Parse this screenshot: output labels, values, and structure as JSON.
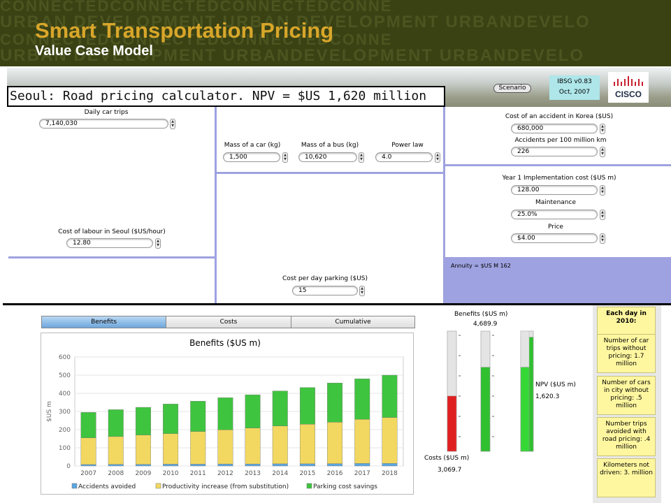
{
  "header": {
    "title": "Smart Transportation Pricing",
    "subtitle": "Value Case Model",
    "bg_line1": "CONNECTEDCONNECTEDCONNECTEDCONNE",
    "bg_line2": "URBAN DEVELOPMENT URBAN DEVELOPMENT URBANDEVELO",
    "bg_line3": "CONNECTEDCONNECTEDCONNECTEDCONNE",
    "bg_line4": "URBAN DEVELOPMENT URBANDEVELOPMENT URBANDEVELO"
  },
  "main_title": "Seoul: Road pricing calculator.  NPV =  $US 1,620 million",
  "scenario_button": "Scenario",
  "version": {
    "line1": "IBSG v0.83",
    "line2": "Oct, 2007"
  },
  "logo_text": "CISCO",
  "inputs": {
    "daily_car_trips": {
      "label": "Daily car trips",
      "value": "7,140,030"
    },
    "labour_cost": {
      "label": "Cost of labour in Seoul ($US/hour)",
      "value": "12.80"
    },
    "mass_car": {
      "label": "Mass of a car (kg)",
      "value": "1,500"
    },
    "mass_bus": {
      "label": "Mass of a bus (kg)",
      "value": "10,620"
    },
    "power_law": {
      "label": "Power law",
      "value": "4.0"
    },
    "parking_cost": {
      "label": "Cost per day parking ($US)",
      "value": "15"
    },
    "accident_cost": {
      "label": "Cost of an accident in Korea ($US)",
      "value": "680,000"
    },
    "accidents_per_km": {
      "label": "Accidents per 100 million km",
      "value": "226"
    },
    "impl_cost": {
      "label": "Year 1 Implementation cost ($US m)",
      "value": "128.00"
    },
    "maintenance": {
      "label": "Maintenance",
      "value": "25.0%"
    },
    "price": {
      "label": "Price",
      "value": "$4.00"
    }
  },
  "annuity": "Annuity = $US M 162",
  "tabs": [
    "Benefits",
    "Costs",
    "Cumulative"
  ],
  "gauges": {
    "benefits_label": "Benefits ($US m)",
    "benefits_value": "4,689.9",
    "npv_label": "NPV ($US m)",
    "npv_value": "1,620.3",
    "costs_label": "Costs ($US m)",
    "costs_value": "3,069.7",
    "costs_fill": 0.46,
    "benefits_fill": 0.7,
    "npv_fill": 0.95,
    "npv_inner_fill": 0.7
  },
  "textboxes": [
    "Each day in 2010:",
    "Number of car trips without pricing: 1.7 million",
    "Number of cars in city without pricing: .5 million",
    "Number trips avoided with road pricing: .4 million",
    "Kilometers not driven: 3. million"
  ],
  "colors": {
    "accidents": "#5aa6e0",
    "productivity": "#f2d860",
    "parking": "#3fc43f",
    "red": "#e02020",
    "green": "#30c030"
  },
  "chart_data": {
    "type": "bar",
    "title": "Benefits ($US m)",
    "ylabel": "$US m",
    "xlabel": "",
    "ylim": [
      0,
      600
    ],
    "yticks": [
      0,
      100,
      200,
      300,
      400,
      500,
      600
    ],
    "categories": [
      "2007",
      "2008",
      "2009",
      "2010",
      "2011",
      "2012",
      "2013",
      "2014",
      "2015",
      "2016",
      "2017",
      "2018"
    ],
    "stacked": true,
    "series": [
      {
        "name": "Accidents avoided",
        "values": [
          8,
          9,
          9,
          10,
          10,
          11,
          11,
          12,
          12,
          13,
          14,
          14
        ]
      },
      {
        "name": "Productivity increase (from substitution)",
        "values": [
          147,
          153,
          161,
          168,
          180,
          188,
          198,
          208,
          218,
          228,
          243,
          253
        ]
      },
      {
        "name": "Parking cost savings",
        "values": [
          140,
          148,
          153,
          163,
          167,
          177,
          183,
          193,
          202,
          216,
          223,
          233
        ]
      }
    ],
    "legend_position": "bottom",
    "grid": true
  }
}
